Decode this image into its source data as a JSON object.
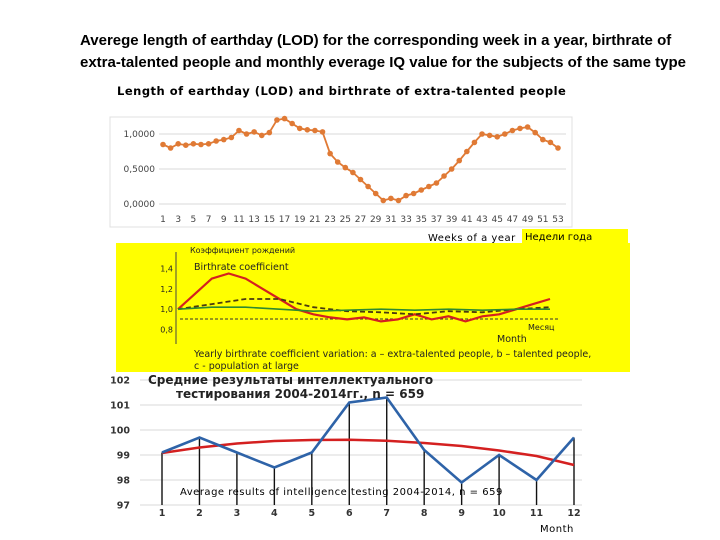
{
  "slide": {
    "title_line1": "Averege length of earthday (LOD) for the corresponding week in a year, birthrate of",
    "title_line2": "extra-talented people  and monthly everage IQ value for the subjects of the same type"
  },
  "colors": {
    "lod_line": "#e07a35",
    "birthrate_panel_bg": "#ffff00",
    "iq_blue": "#2e63a8",
    "iq_red": "#d42020",
    "grid": "#d9d9d9"
  },
  "notes": {
    "weeks_label": "Weeks of a year",
    "weeks_label_ru": "Недели года",
    "birthrate_coef": "Birthrate coefficient",
    "birthrate_month": "Month",
    "birthrate_caption_1": "Yearly birthrate coefficient variation: a – extra-talented people, b – talented people,",
    "birthrate_caption_2": "c - population at large",
    "iq_caption": "Average results of intelligence testing 2004-2014, n = 659",
    "iq_month": "Month"
  },
  "chart_data": [
    {
      "type": "line",
      "title": "Length of earthday (LOD) and birthrate of extra-talented people",
      "xlabel": "Weeks of a year",
      "x_tick_labels": [
        "1",
        "3",
        "5",
        "7",
        "9",
        "11",
        "13",
        "15",
        "17",
        "19",
        "21",
        "23",
        "25",
        "27",
        "29",
        "31",
        "33",
        "35",
        "37",
        "39",
        "41",
        "43",
        "45",
        "47",
        "49",
        "51",
        "53"
      ],
      "ylim": [
        0,
        1.2
      ],
      "y_tick_labels": [
        "0,0000",
        "0,5000",
        "1,0000"
      ],
      "y_ticks": [
        0,
        0.5,
        1.0
      ],
      "grid": true,
      "series": [
        {
          "x": [
            1,
            2,
            3,
            4,
            5,
            6,
            7,
            8,
            9,
            10,
            11,
            12,
            13,
            14,
            15,
            16,
            17,
            18,
            19,
            20,
            21,
            22,
            23,
            24,
            25,
            26,
            27,
            28,
            29,
            30,
            31,
            32,
            33,
            34,
            35,
            36,
            37,
            38,
            39,
            40,
            41,
            42,
            43,
            44,
            45,
            46,
            47,
            48,
            49,
            50,
            51,
            52,
            53
          ],
          "y": [
            0.85,
            0.8,
            0.86,
            0.84,
            0.86,
            0.85,
            0.86,
            0.9,
            0.92,
            0.95,
            1.05,
            1.0,
            1.03,
            0.98,
            1.02,
            1.2,
            1.22,
            1.15,
            1.08,
            1.06,
            1.05,
            1.03,
            0.72,
            0.6,
            0.52,
            0.45,
            0.35,
            0.25,
            0.15,
            0.05,
            0.08,
            0.05,
            0.12,
            0.15,
            0.2,
            0.25,
            0.3,
            0.4,
            0.5,
            0.62,
            0.75,
            0.88,
            1.0,
            0.98,
            0.96,
            1.0,
            1.05,
            1.08,
            1.1,
            1.02,
            0.92,
            0.88,
            0.8
          ]
        }
      ]
    },
    {
      "type": "line",
      "title": "Коэффициент рождений",
      "xlabel": "Месяц",
      "ylabel": "Birthrate coefficient",
      "y_tick_labels": [
        "1,4",
        "1,2",
        "1,0",
        "0,8"
      ],
      "y_ticks": [
        1.4,
        1.2,
        1.0,
        0.8
      ],
      "ylim": [
        0.6,
        1.6
      ],
      "xlim": [
        1,
        12
      ],
      "series": [
        {
          "x": [
            1,
            1.5,
            2,
            2.5,
            3,
            3.5,
            4,
            4.5,
            5,
            5.5,
            6,
            6.5,
            7,
            7.5,
            8,
            8.5,
            9,
            9.5,
            10,
            10.5,
            11,
            11.5,
            12
          ],
          "y": [
            1.0,
            1.15,
            1.3,
            1.35,
            1.3,
            1.2,
            1.1,
            1.0,
            0.95,
            0.92,
            0.9,
            0.92,
            0.88,
            0.9,
            0.95,
            0.9,
            0.93,
            0.88,
            0.93,
            0.95,
            1.0,
            1.05,
            1.1
          ]
        },
        {
          "x": [
            1,
            2,
            3,
            4,
            5,
            6,
            7,
            8,
            9,
            10,
            11,
            12
          ],
          "y": [
            1.0,
            1.05,
            1.1,
            1.1,
            1.02,
            0.98,
            0.97,
            0.95,
            0.98,
            0.97,
            1.0,
            1.02
          ]
        },
        {
          "x": [
            1,
            2,
            3,
            4,
            5,
            6,
            7,
            8,
            9,
            10,
            11,
            12
          ],
          "y": [
            1.0,
            1.02,
            1.02,
            1.0,
            0.98,
            0.99,
            1.0,
            0.99,
            1.0,
            0.99,
            1.0,
            1.0
          ]
        }
      ]
    },
    {
      "type": "line",
      "title_line1": "Средние результаты интеллектуального",
      "title_line2": "тестирования 2004-2014гг., n = 659",
      "xlabel": "Month",
      "categories": [
        "1",
        "2",
        "3",
        "4",
        "5",
        "6",
        "7",
        "8",
        "9",
        "10",
        "11",
        "12"
      ],
      "ylim": [
        97,
        102
      ],
      "y_ticks": [
        97,
        98,
        99,
        100,
        101,
        102
      ],
      "y_tick_labels": [
        "97",
        "98",
        "99",
        "100",
        "101",
        "102"
      ],
      "grid": true,
      "series": [
        {
          "values": [
            99.1,
            99.7,
            99.1,
            98.5,
            99.1,
            101.1,
            101.3,
            99.2,
            97.9,
            99.0,
            98.0,
            99.7
          ]
        },
        {
          "values": [
            99.08,
            99.3,
            99.46,
            99.56,
            99.6,
            99.61,
            99.57,
            99.48,
            99.36,
            99.18,
            98.96,
            98.6
          ]
        }
      ]
    }
  ]
}
